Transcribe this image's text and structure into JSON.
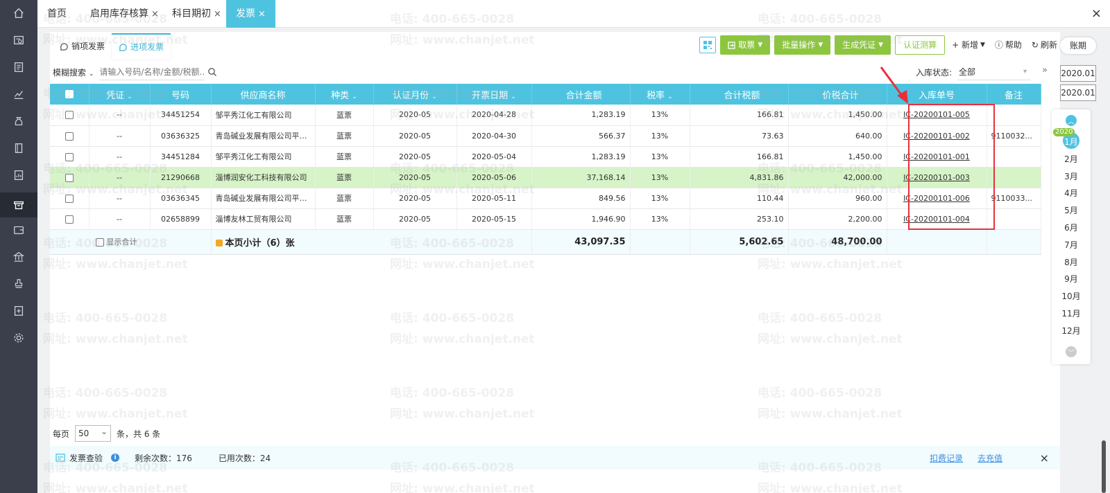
{
  "top_tabs": [
    {
      "label": "首页",
      "closable": false,
      "active": false
    },
    {
      "label": "启用库存核算",
      "closable": true,
      "active": false
    },
    {
      "label": "科目期初",
      "closable": true,
      "active": false
    },
    {
      "label": "发票",
      "closable": true,
      "active": true
    }
  ],
  "close_glyph": "×",
  "sub_tabs": [
    {
      "label": "销项发票",
      "active": false
    },
    {
      "label": "进项发票",
      "active": true
    }
  ],
  "toolbar": {
    "fetch_label": "取票",
    "batch_label": "批量操作",
    "voucher_label": "生成凭证",
    "certify_label": "认证测算",
    "add_label": "+ 新增",
    "help_label": "帮助",
    "refresh_label": "刷新"
  },
  "search": {
    "mode": "模糊搜索",
    "placeholder": "请输入号码/名称/金额/税额..."
  },
  "status_filter": {
    "label": "入库状态:",
    "value": "全部"
  },
  "columns": [
    "凭证",
    "号码",
    "供应商名称",
    "种类",
    "认证月份",
    "开票日期",
    "合计金额",
    "税率",
    "合计税额",
    "价税合计",
    "入库单号",
    "备注"
  ],
  "rows": [
    {
      "voucher": "--",
      "number": "34451254",
      "supplier": "邹平秀江化工有限公司",
      "kind": "蓝票",
      "cert_month": "2020-05",
      "date": "2020-04-28",
      "amount": "1,283.19",
      "rate": "13%",
      "tax": "166.81",
      "total": "1,450.00",
      "receipt": "IC-20200101-005",
      "note": "",
      "highlight": false
    },
    {
      "voucher": "--",
      "number": "03636325",
      "supplier": "青岛碱业发展有限公司平度...",
      "kind": "蓝票",
      "cert_month": "2020-05",
      "date": "2020-04-30",
      "amount": "566.37",
      "rate": "13%",
      "tax": "73.63",
      "total": "640.00",
      "receipt": "IC-20200101-002",
      "note": "9110032...",
      "highlight": false
    },
    {
      "voucher": "--",
      "number": "34451284",
      "supplier": "邹平秀江化工有限公司",
      "kind": "蓝票",
      "cert_month": "2020-05",
      "date": "2020-05-04",
      "amount": "1,283.19",
      "rate": "13%",
      "tax": "166.81",
      "total": "1,450.00",
      "receipt": "IC-20200101-001",
      "note": "",
      "highlight": false
    },
    {
      "voucher": "--",
      "number": "21290668",
      "supplier": "淄博润安化工科技有限公司",
      "kind": "蓝票",
      "cert_month": "2020-05",
      "date": "2020-05-06",
      "amount": "37,168.14",
      "rate": "13%",
      "tax": "4,831.86",
      "total": "42,000.00",
      "receipt": "IC-20200101-003",
      "note": "",
      "highlight": true
    },
    {
      "voucher": "--",
      "number": "03636345",
      "supplier": "青岛碱业发展有限公司平度...",
      "kind": "蓝票",
      "cert_month": "2020-05",
      "date": "2020-05-11",
      "amount": "849.56",
      "rate": "13%",
      "tax": "110.44",
      "total": "960.00",
      "receipt": "IC-20200101-006",
      "note": "9110033...",
      "highlight": false
    },
    {
      "voucher": "--",
      "number": "02658899",
      "supplier": "淄博友林工贸有限公司",
      "kind": "蓝票",
      "cert_month": "2020-05",
      "date": "2020-05-15",
      "amount": "1,946.90",
      "rate": "13%",
      "tax": "253.10",
      "total": "2,200.00",
      "receipt": "IC-20200101-004",
      "note": "",
      "highlight": false
    }
  ],
  "summary": {
    "show_total_label": "显示合计",
    "subtotal_label": "本页小计（6）张",
    "amount": "43,097.35",
    "tax": "5,602.65",
    "total": "48,700.00"
  },
  "pager": {
    "per_page_label": "每页",
    "page_size": "50",
    "count_label": "条，共 6 条"
  },
  "footer": {
    "verify_label": "发票查验",
    "remaining_label": "剩余次数：176",
    "used_label": "已用次数：24",
    "deduct_link": "扣费记录",
    "recharge_link": "去充值"
  },
  "right_rail": {
    "ledger_label": "账期",
    "period_start": "2020.01",
    "period_end": "2020.01",
    "year_badge": "2020",
    "months": [
      "1月",
      "2月",
      "3月",
      "4月",
      "5月",
      "6月",
      "7月",
      "8月",
      "9月",
      "10月",
      "11月",
      "12月"
    ],
    "active_month_index": 0
  },
  "watermark": {
    "phone": "电话: 400-665-0028",
    "site": "网址: www.chanjet.net"
  },
  "colors": {
    "accent": "#4ec3e0",
    "green_button": "#8cc63f",
    "highlight_row": "#d7f3c8",
    "annotation_red": "#e8303b",
    "nav_bg": "#3a3f4b"
  },
  "nav_icons": [
    "home-icon",
    "search-list-icon",
    "ledger-icon",
    "chart-icon",
    "money-bag-icon",
    "book-icon",
    "report-icon",
    "invoice-icon",
    "wallet-icon",
    "bank-icon",
    "stamp-icon",
    "document-add-icon",
    "settings-icon"
  ]
}
